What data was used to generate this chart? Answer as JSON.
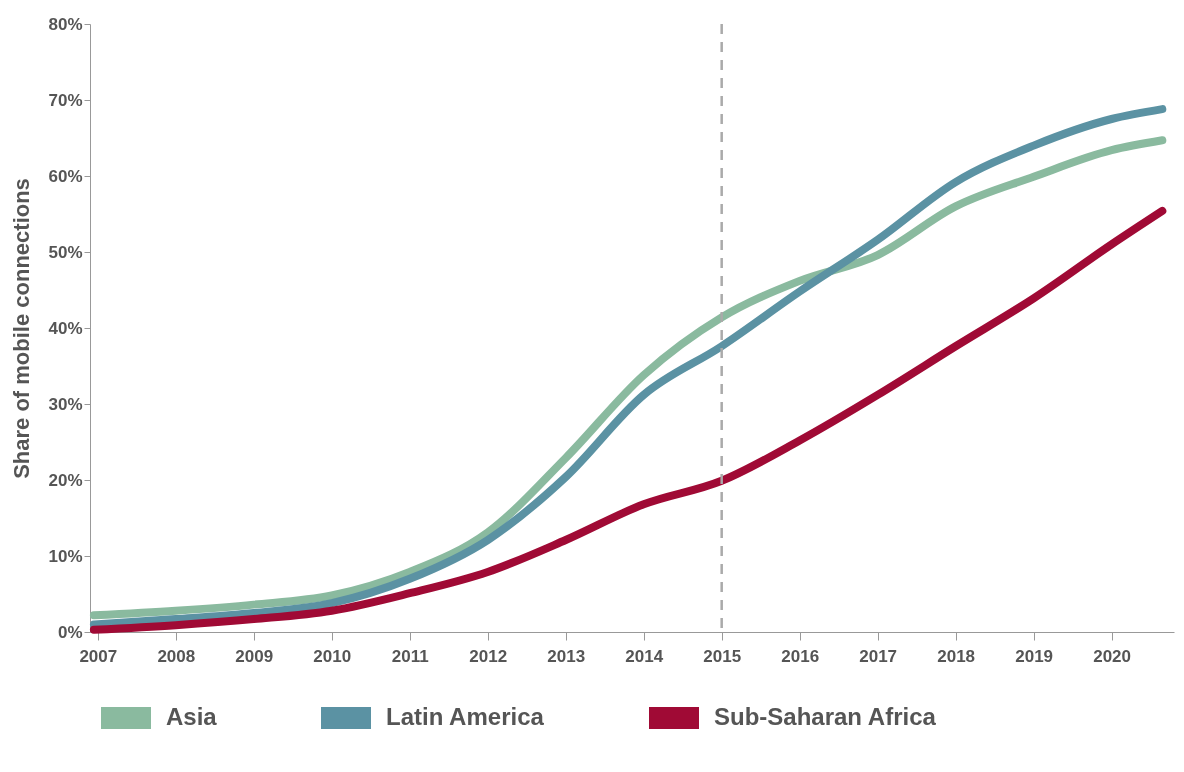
{
  "chart_data": {
    "type": "line",
    "ylabel": "Share of mobile connections",
    "x": [
      2006.95,
      2008,
      2009,
      2010,
      2011,
      2012,
      2013,
      2014,
      2015,
      2016,
      2017,
      2018,
      2019,
      2020,
      2020.65
    ],
    "series": [
      {
        "name": "Asia",
        "color": "#8aba9f",
        "values": [
          2.2,
          2.8,
          3.6,
          4.8,
          7.9,
          13.1,
          22.9,
          33.8,
          41.4,
          46.2,
          49.6,
          56,
          59.9,
          63.4,
          64.7
        ]
      },
      {
        "name": "Latin America",
        "color": "#5b92a3",
        "values": [
          1,
          1.7,
          2.5,
          3.8,
          7,
          12.1,
          20.4,
          31.2,
          37.6,
          44.8,
          51.6,
          59.2,
          64,
          67.5,
          68.8
        ]
      },
      {
        "name": "Sub-Saharan Africa",
        "color": "#a00a35",
        "values": [
          0.3,
          0.9,
          1.7,
          2.8,
          5.1,
          7.9,
          12.1,
          16.8,
          19.9,
          25.2,
          31.2,
          37.6,
          43.9,
          51,
          55.4
        ]
      }
    ],
    "xlim": [
      2006.9,
      2020.8
    ],
    "xticks": [
      2007,
      2008,
      2009,
      2010,
      2011,
      2012,
      2013,
      2014,
      2015,
      2016,
      2017,
      2018,
      2019,
      2020
    ],
    "ylim": [
      0,
      80
    ],
    "yticks": [
      {
        "value": 0,
        "label": "0%"
      },
      {
        "value": 10,
        "label": "10%"
      },
      {
        "value": 20,
        "label": "20%"
      },
      {
        "value": 30,
        "label": "30%"
      },
      {
        "value": 40,
        "label": "40%"
      },
      {
        "value": 50,
        "label": "50%"
      },
      {
        "value": 60,
        "label": "60%"
      },
      {
        "value": 70,
        "label": "70%"
      },
      {
        "value": 80,
        "label": "80%"
      }
    ],
    "ref_lines": [
      {
        "axis": "x",
        "value": 2015,
        "color": "#aaaaaa",
        "line_style": "dashed"
      }
    ],
    "grid": false,
    "legend": "bottom",
    "line_style": "solid",
    "marker": "none"
  }
}
